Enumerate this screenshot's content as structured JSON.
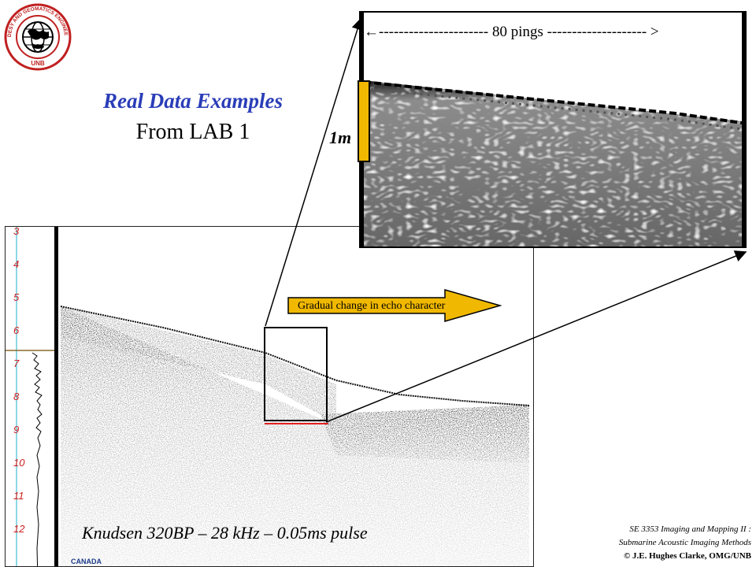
{
  "logo": {
    "top_text": "GEODESY AND GEOMATICS ENGINEERING",
    "bottom_text": "UNB"
  },
  "slide": {
    "title": "Real Data Examples",
    "subtitle": "From LAB 1"
  },
  "echogram": {
    "depth_ticks": [
      "3",
      "4",
      "5",
      "6",
      "7",
      "8",
      "9",
      "10",
      "11",
      "12"
    ],
    "callout": "Gradual change in echo character",
    "caption": "Knudsen 320BP – 28 kHz – 0.05ms pulse",
    "corner_label": "CANADA"
  },
  "inset": {
    "pings_label": "←---------------------- 80 pings -------------------- >",
    "scale_label": "1m"
  },
  "credit": {
    "line1": "SE 3353 Imaging and Mapping II :",
    "line2": "Submarine Acoustic Imaging Methods",
    "line3": "© J.E. Hughes Clarke, OMG/UNB"
  },
  "colors": {
    "title": "#2a3db8",
    "depth_text": "#d02020",
    "scale_bar": "#f0b800",
    "callout_arrow": "#f0b800",
    "guide_line": "#1ab0c8"
  }
}
